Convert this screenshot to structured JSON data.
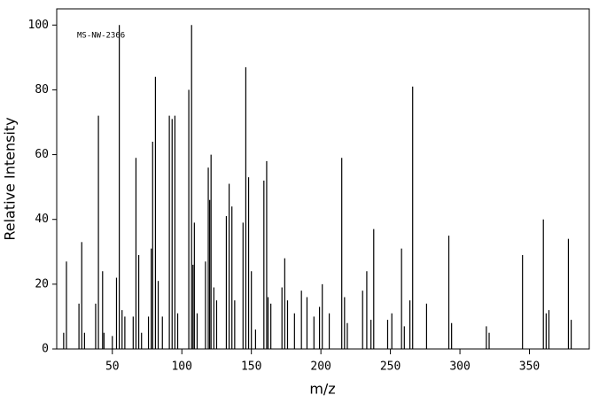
{
  "chart_data": {
    "type": "bar",
    "annotation": "MS-NW-2366",
    "x_label": "m/z",
    "y_label": "Relative Intensity",
    "x": [
      15,
      17,
      26,
      28,
      30,
      38,
      40,
      43,
      44,
      50,
      53,
      55,
      57,
      59,
      65,
      67,
      69,
      71,
      76,
      78,
      79,
      81,
      83,
      86,
      91,
      93,
      95,
      97,
      105,
      107,
      108,
      109,
      111,
      117,
      119,
      120,
      121,
      123,
      125,
      132,
      134,
      136,
      138,
      144,
      146,
      148,
      150,
      153,
      159,
      161,
      162,
      164,
      172,
      174,
      176,
      181,
      186,
      190,
      195,
      199,
      201,
      206,
      215,
      217,
      219,
      230,
      233,
      236,
      238,
      248,
      251,
      258,
      260,
      264,
      266,
      276,
      292,
      294,
      319,
      321,
      345,
      360,
      362,
      364,
      378,
      380
    ],
    "values": [
      5,
      27,
      14,
      33,
      5,
      14,
      72,
      24,
      5,
      4,
      22,
      100,
      12,
      10,
      10,
      59,
      29,
      5,
      10,
      31,
      64,
      84,
      21,
      10,
      72,
      71,
      72,
      11,
      80,
      100,
      26,
      39,
      11,
      27,
      56,
      46,
      60,
      19,
      15,
      41,
      51,
      44,
      15,
      39,
      87,
      53,
      24,
      6,
      52,
      58,
      16,
      14,
      19,
      28,
      15,
      11,
      18,
      16,
      10,
      13,
      20,
      11,
      59,
      16,
      8,
      18,
      24,
      9,
      37,
      9,
      11,
      31,
      7,
      15,
      81,
      14,
      35,
      8,
      7,
      5,
      29,
      40,
      11,
      12,
      34,
      9
    ],
    "color": "#000000",
    "xlim": [
      10,
      393
    ],
    "ylim": [
      0,
      105
    ],
    "xticks": [
      50,
      100,
      150,
      200,
      250,
      300,
      350
    ],
    "yticks": [
      0,
      20,
      40,
      60,
      80,
      100
    ]
  }
}
